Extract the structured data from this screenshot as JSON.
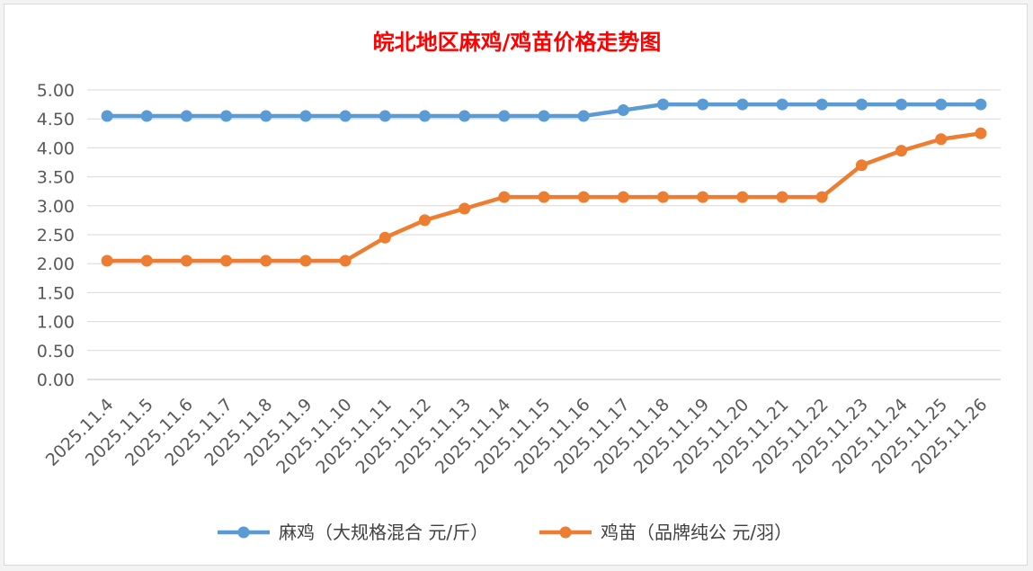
{
  "chart_data": {
    "type": "line",
    "title": "皖北地区麻鸡/鸡苗价格走势图",
    "title_color": "#ff0000",
    "xlabel": "",
    "ylabel": "",
    "ylim": [
      0,
      5
    ],
    "y_ticks": [
      "0.00",
      "0.50",
      "1.00",
      "1.50",
      "2.00",
      "2.50",
      "3.00",
      "3.50",
      "4.00",
      "4.50",
      "5.00"
    ],
    "grid": true,
    "legend_position": "bottom",
    "categories": [
      "2025.11.4",
      "2025.11.5",
      "2025.11.6",
      "2025.11.7",
      "2025.11.8",
      "2025.11.9",
      "2025.11.10",
      "2025.11.11",
      "2025.11.12",
      "2025.11.13",
      "2025.11.14",
      "2025.11.15",
      "2025.11.16",
      "2025.11.17",
      "2025.11.18",
      "2025.11.19",
      "2025.11.20",
      "2025.11.21",
      "2025.11.22",
      "2025.11.23",
      "2025.11.24",
      "2025.11.25",
      "2025.11.26"
    ],
    "series": [
      {
        "name": "麻鸡（大规格混合 元/斤）",
        "color": "#5b9bd5",
        "values": [
          4.55,
          4.55,
          4.55,
          4.55,
          4.55,
          4.55,
          4.55,
          4.55,
          4.55,
          4.55,
          4.55,
          4.55,
          4.55,
          4.65,
          4.75,
          4.75,
          4.75,
          4.75,
          4.75,
          4.75,
          4.75,
          4.75,
          4.75
        ]
      },
      {
        "name": "鸡苗（品牌纯公 元/羽）",
        "color": "#ed7d31",
        "values": [
          2.05,
          2.05,
          2.05,
          2.05,
          2.05,
          2.05,
          2.05,
          2.45,
          2.75,
          2.95,
          3.15,
          3.15,
          3.15,
          3.15,
          3.15,
          3.15,
          3.15,
          3.15,
          3.15,
          3.7,
          3.95,
          4.15,
          4.25
        ]
      }
    ]
  }
}
